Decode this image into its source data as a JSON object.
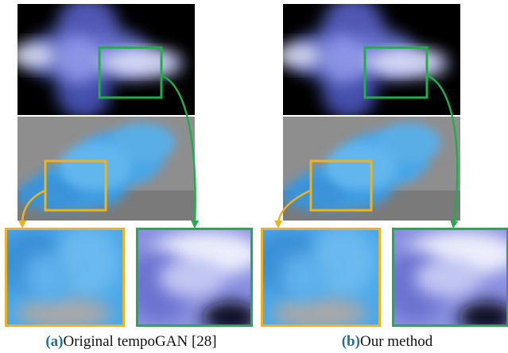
{
  "figure": {
    "panels": [
      {
        "label": "(a)",
        "caption": "Original tempoGAN [28]"
      },
      {
        "label": "(b)",
        "caption": "Our method"
      }
    ]
  }
}
